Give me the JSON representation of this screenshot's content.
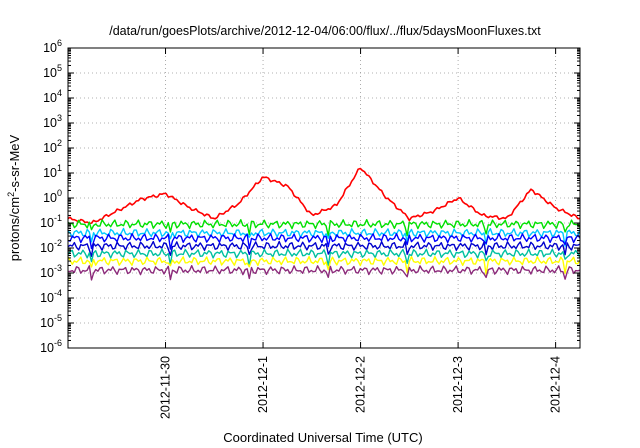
{
  "chart_data": {
    "type": "line",
    "title": "/data/run/goesPlots/archive/2012-12-04/06:00/flux/../flux/5daysMoonFluxes.txt",
    "xlabel": "Coordinated Universal Time (UTC)",
    "ylabel": "protons/cm2-s-sr-MeV",
    "y_scale": "log",
    "ylim": [
      "1e-6",
      "1e6"
    ],
    "y_ticks": [
      "1e-6",
      "1e-5",
      "1e-4",
      "1e-3",
      "1e-2",
      "1e-1",
      "1e0",
      "1e1",
      "1e2",
      "1e3",
      "1e4",
      "1e5",
      "1e6"
    ],
    "xlim": [
      "2012-11-29",
      "2012-12-04 06:00"
    ],
    "x_ticks": [
      "2012-11-30",
      "2012-12-1",
      "2012-12-2",
      "2012-12-3",
      "2012-12-4"
    ],
    "grid": true,
    "series": [
      {
        "color": "#ff0000",
        "x": [
          "2012-11-29 00:00",
          "2012-11-29 06:00",
          "2012-11-29 12:00",
          "2012-11-29 18:00",
          "2012-11-30 00:00",
          "2012-11-30 06:00",
          "2012-11-30 12:00",
          "2012-11-30 18:00",
          "2012-12-01 00:00",
          "2012-12-01 06:00",
          "2012-12-01 12:00",
          "2012-12-01 18:00",
          "2012-12-02 00:00",
          "2012-12-02 06:00",
          "2012-12-02 12:00",
          "2012-12-02 18:00",
          "2012-12-03 00:00",
          "2012-12-03 06:00",
          "2012-12-03 12:00",
          "2012-12-03 18:00",
          "2012-12-04 00:00",
          "2012-12-04 06:00"
        ],
        "y": [
          0.15,
          0.1,
          0.3,
          0.9,
          1.5,
          0.4,
          0.15,
          0.6,
          7,
          3,
          0.2,
          0.5,
          17,
          1.2,
          0.15,
          0.3,
          1.0,
          0.2,
          0.15,
          2.2,
          0.4,
          0.15
        ]
      },
      {
        "color": "#00e000",
        "x": [
          "2012-11-29 00:00",
          "2012-12-04 06:00"
        ],
        "y": [
          0.09,
          0.09
        ]
      },
      {
        "color": "#00c8ff",
        "x": [
          "2012-11-29 00:00",
          "2012-12-04 06:00"
        ],
        "y": [
          0.04,
          0.04
        ]
      },
      {
        "color": "#0000ff",
        "x": [
          "2012-11-29 00:00",
          "2012-12-04 06:00"
        ],
        "y": [
          0.025,
          0.025
        ]
      },
      {
        "color": "#0000cc",
        "x": [
          "2012-11-29 00:00",
          "2012-12-04 06:00"
        ],
        "y": [
          0.012,
          0.012
        ]
      },
      {
        "color": "#00c0a0",
        "x": [
          "2012-11-29 00:00",
          "2012-12-04 06:00"
        ],
        "y": [
          0.006,
          0.006
        ]
      },
      {
        "color": "#ffff00",
        "x": [
          "2012-11-29 00:00",
          "2012-12-04 06:00"
        ],
        "y": [
          0.003,
          0.003
        ]
      },
      {
        "color": "#8b2a7a",
        "x": [
          "2012-11-29 00:00",
          "2012-12-04 06:00"
        ],
        "y": [
          0.0013,
          0.0013
        ]
      }
    ]
  }
}
